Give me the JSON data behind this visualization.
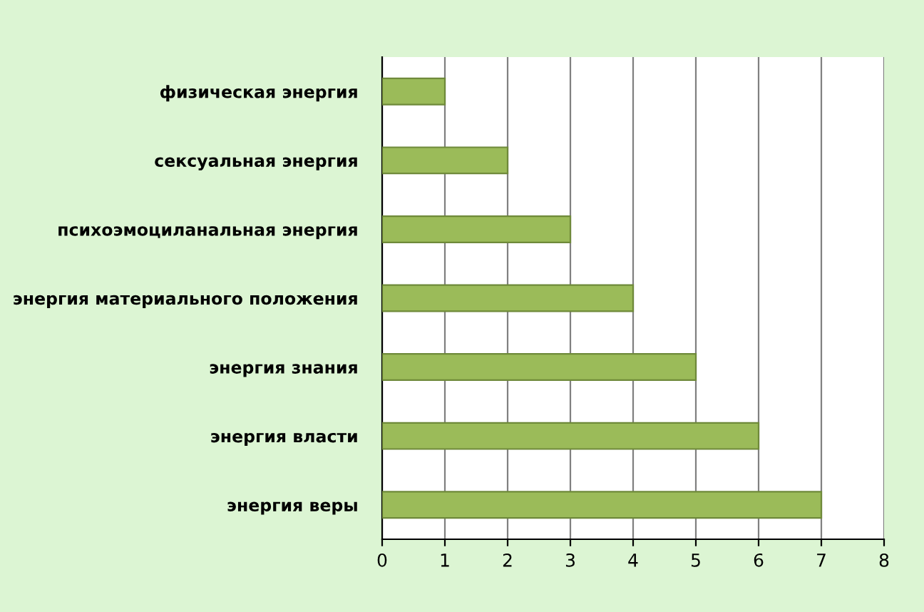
{
  "chart_data": {
    "type": "bar",
    "orientation": "horizontal",
    "categories": [
      "физическая энергия",
      "сексуальная энергия",
      "психоэмоциланальная энергия",
      "энергия материального положения",
      "энергия знания",
      "энергия власти",
      "энергия веры"
    ],
    "values": [
      1,
      2,
      3,
      4,
      5,
      6,
      7
    ],
    "color": "#9bbb59",
    "xlim": [
      0,
      8
    ],
    "xticks": [
      0,
      1,
      2,
      3,
      4,
      5,
      6,
      7,
      8
    ],
    "grid": "x",
    "legend": false
  }
}
